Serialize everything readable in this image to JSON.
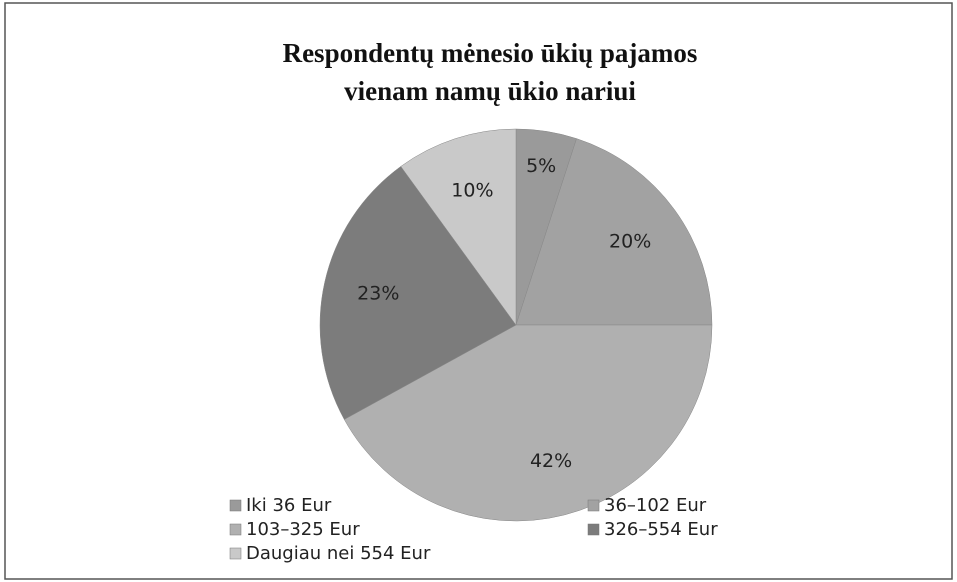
{
  "chart_data": {
    "type": "pie",
    "title": [
      "Respondentų mėnesio ūkių pajamos",
      "vienam namų ūkio nariui"
    ],
    "categories": [
      "Iki 36 Eur",
      "36–102 Eur",
      "103–325 Eur",
      "326–554 Eur",
      "Daugiau nei 554 Eur"
    ],
    "values": [
      5,
      20,
      42,
      23,
      10
    ],
    "value_labels": [
      "5%",
      "20%",
      "42%",
      "23%",
      "10%"
    ],
    "colors": [
      "#9a9a9a",
      "#a2a2a2",
      "#b0b0b0",
      "#7c7c7c",
      "#c9c9c9"
    ],
    "legend": "bottom"
  }
}
